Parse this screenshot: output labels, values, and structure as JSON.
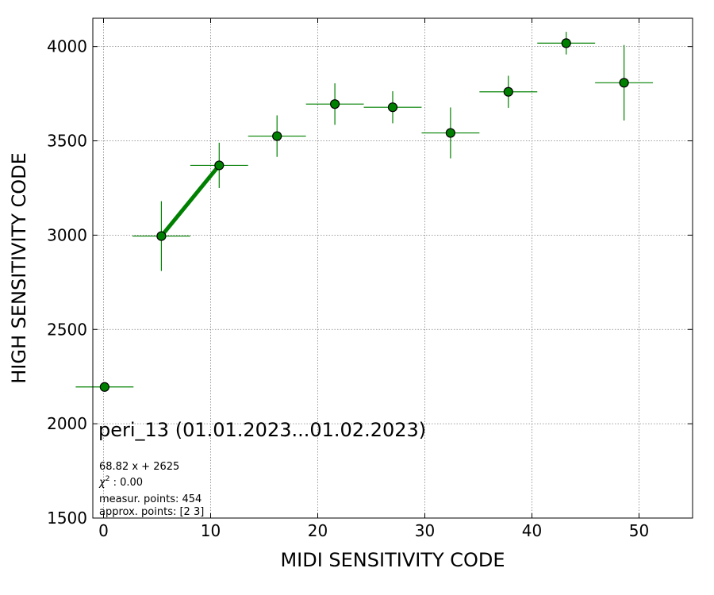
{
  "chart_data": {
    "type": "scatter",
    "xlabel": "MIDI SENSITIVITY CODE",
    "ylabel": "HIGH SENSITIVITY CODE",
    "xlim": [
      -1,
      55
    ],
    "ylim": [
      1500,
      4150
    ],
    "x_ticks": [
      0,
      10,
      20,
      30,
      40,
      50
    ],
    "y_ticks": [
      1500,
      2000,
      2500,
      3000,
      3500,
      4000
    ],
    "grid": true,
    "colors": {
      "marker_fill": "#008000",
      "marker_edge": "#000000",
      "errorbar": "#008000",
      "fit_line": "#008000",
      "grid": "#808080"
    },
    "points": [
      {
        "x": 0.1,
        "y": 2195,
        "xerr": 2.7,
        "yerr": 0
      },
      {
        "x": 5.4,
        "y": 2995,
        "xerr": 2.7,
        "yerr": 185
      },
      {
        "x": 10.8,
        "y": 3370,
        "xerr": 2.7,
        "yerr": 120
      },
      {
        "x": 16.2,
        "y": 3525,
        "xerr": 2.7,
        "yerr": 110
      },
      {
        "x": 21.6,
        "y": 3695,
        "xerr": 2.7,
        "yerr": 110
      },
      {
        "x": 27.0,
        "y": 3678,
        "xerr": 2.7,
        "yerr": 85
      },
      {
        "x": 32.4,
        "y": 3542,
        "xerr": 2.7,
        "yerr": 135
      },
      {
        "x": 37.8,
        "y": 3760,
        "xerr": 2.7,
        "yerr": 85
      },
      {
        "x": 43.2,
        "y": 4018,
        "xerr": 2.7,
        "yerr": 60
      },
      {
        "x": 48.6,
        "y": 3808,
        "xerr": 2.7,
        "yerr": 200
      }
    ],
    "fit": {
      "x": [
        5.4,
        10.8
      ],
      "y": [
        2995,
        3370
      ]
    },
    "annotations": {
      "title": "peri_13 (01.01.2023...01.02.2023)",
      "equation": "68.82 x + 2625",
      "chi2_label": "χ",
      "chi2_exp": "2",
      "chi2_value": " : 0.00",
      "measur_points": "measur. points: 454",
      "approx_points": "approx. points: [2 3]"
    }
  }
}
